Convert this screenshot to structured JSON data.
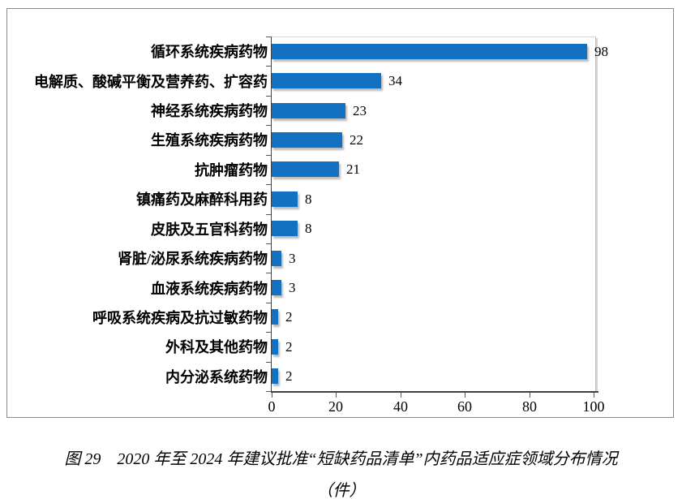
{
  "figure": {
    "caption": "图 29　2020 年至 2024 年建议批准“短缺药品清单”内药品适应症领域分布情况",
    "caption_unit": "（件）"
  },
  "chart_data": {
    "type": "bar",
    "orientation": "horizontal",
    "title": "",
    "categories": [
      "循环系统疾病药物",
      "电解质、酸碱平衡及营养药、扩容药",
      "神经系统疾病药物",
      "生殖系统疾病药物",
      "抗肿瘤药物",
      "镇痛药及麻醉科用药",
      "皮肤及五官科药物",
      "肾脏/泌尿系统疾病药物",
      "血液系统疾病药物",
      "呼吸系统疾病及抗过敏药物",
      "外科及其他药物",
      "内分泌系统药物"
    ],
    "values": [
      98,
      34,
      23,
      22,
      21,
      8,
      8,
      3,
      3,
      2,
      2,
      2
    ],
    "data_labels": true,
    "x_ticks": [
      0,
      20,
      40,
      60,
      80,
      100
    ],
    "xlim": [
      0,
      100
    ],
    "unit": "件",
    "grid": false,
    "legend": null,
    "bar_color": "#1271C0",
    "axis_color": "#404040"
  }
}
